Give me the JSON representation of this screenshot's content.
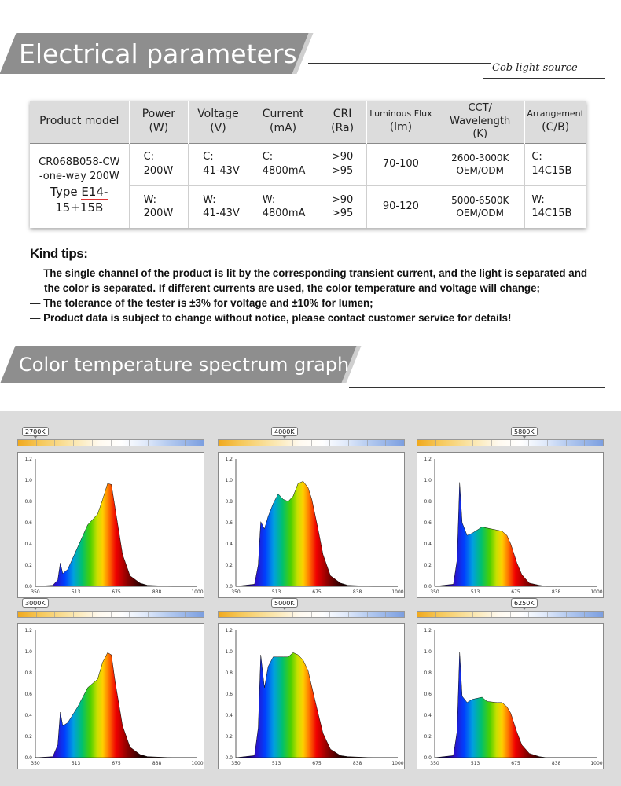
{
  "header1": {
    "title": "Electrical parameters",
    "subtitle": "Cob light source"
  },
  "table": {
    "headers": [
      {
        "line1": "Product model",
        "line2": ""
      },
      {
        "line1": "Power",
        "line2": "(W)"
      },
      {
        "line1": "Voltage",
        "line2": "(V)"
      },
      {
        "line1": "Current",
        "line2": "(mA)"
      },
      {
        "line1": "CRI",
        "line2": "(Ra)"
      },
      {
        "line1": "Luminous Flux",
        "line2": "(lm)"
      },
      {
        "line1": "CCT/ Wavelength",
        "line2": "(K)"
      },
      {
        "line1": "Arrangement",
        "line2": "(C/B)"
      }
    ],
    "model": {
      "line1": "CR068B058-CW",
      "line2": "-one-way 200W",
      "type_prefix": "Type ",
      "type_underlined": "E14-15+15B"
    },
    "rows": [
      {
        "power": [
          "C:",
          "200W"
        ],
        "voltage": [
          "C:",
          "41-43V"
        ],
        "current": [
          "C:",
          "4800mA"
        ],
        "cri": [
          ">90",
          ">95"
        ],
        "flux": "70-100",
        "cct": [
          "2600-3000K",
          "OEM/ODM"
        ],
        "arrangement": [
          "C:",
          "14C15B"
        ]
      },
      {
        "power": [
          "W:",
          "200W"
        ],
        "voltage": [
          "W:",
          "41-43V"
        ],
        "current": [
          "W:",
          "4800mA"
        ],
        "cri": [
          ">90",
          ">95"
        ],
        "flux": "90-120",
        "cct": [
          "5000-6500K",
          "OEM/ODM"
        ],
        "arrangement": [
          "W:",
          "14C15B"
        ]
      }
    ]
  },
  "tips": {
    "title": "Kind tips:",
    "dash": "—",
    "items": [
      "The single channel of the product is lit by the corresponding transient current, and the light is separated and",
      "the color is separated. If different currents are used, the color temperature and voltage will change;",
      "The tolerance of the tester is ±3% for voltage and ±10% for lumen;",
      "Product data is subject to change without notice, please contact customer service for details!"
    ]
  },
  "header2": {
    "title": "Color temperature spectrum graph"
  },
  "spectra": {
    "y_ticks": [
      "1.2",
      "1.0",
      "0.8",
      "0.6",
      "0.4",
      "0.2",
      "0.0"
    ],
    "x_ticks": [
      "350",
      "513",
      "675",
      "838",
      "1000"
    ],
    "panels": [
      {
        "cct": "2700K",
        "tag_pos": "left"
      },
      {
        "cct": "4000K",
        "tag_pos": "center"
      },
      {
        "cct": "5800K",
        "tag_pos": "right"
      },
      {
        "cct": "3000K",
        "tag_pos": "left"
      },
      {
        "cct": "5000K",
        "tag_pos": "center"
      },
      {
        "cct": "6250K",
        "tag_pos": "right"
      }
    ]
  },
  "chart_data": {
    "type": "area",
    "xlabel": "",
    "ylabel": "",
    "xlim": [
      350,
      1000
    ],
    "ylim": [
      0,
      1.2
    ],
    "series": [
      {
        "label": "2700K",
        "x": [
          350,
          420,
          440,
          450,
          460,
          480,
          520,
          560,
          600,
          620,
          640,
          655,
          670,
          700,
          730,
          770,
          800,
          900,
          1000
        ],
        "values": [
          0,
          0.01,
          0.06,
          0.22,
          0.12,
          0.16,
          0.37,
          0.58,
          0.68,
          0.82,
          0.97,
          0.96,
          0.74,
          0.3,
          0.1,
          0.03,
          0.01,
          0,
          0
        ]
      },
      {
        "label": "4000K",
        "x": [
          350,
          425,
          440,
          450,
          465,
          480,
          500,
          520,
          540,
          560,
          580,
          600,
          620,
          640,
          655,
          680,
          700,
          730,
          770,
          800,
          900,
          1000
        ],
        "values": [
          0,
          0.02,
          0.2,
          0.61,
          0.54,
          0.66,
          0.78,
          0.87,
          0.82,
          0.8,
          0.85,
          0.97,
          0.99,
          0.93,
          0.82,
          0.54,
          0.3,
          0.1,
          0.03,
          0.01,
          0,
          0
        ]
      },
      {
        "label": "5800K",
        "x": [
          350,
          425,
          440,
          450,
          460,
          480,
          500,
          540,
          560,
          600,
          620,
          640,
          655,
          680,
          700,
          730,
          770,
          800,
          900,
          1000
        ],
        "values": [
          0,
          0.02,
          0.25,
          0.98,
          0.6,
          0.48,
          0.5,
          0.56,
          0.55,
          0.53,
          0.52,
          0.48,
          0.4,
          0.22,
          0.11,
          0.03,
          0.01,
          0,
          0,
          0
        ]
      },
      {
        "label": "3000K",
        "x": [
          350,
          420,
          440,
          450,
          460,
          480,
          520,
          560,
          600,
          620,
          640,
          655,
          670,
          700,
          730,
          770,
          800,
          900,
          1000
        ],
        "values": [
          0,
          0.01,
          0.12,
          0.43,
          0.3,
          0.33,
          0.48,
          0.66,
          0.74,
          0.9,
          0.99,
          0.97,
          0.72,
          0.3,
          0.1,
          0.03,
          0.01,
          0,
          0
        ]
      },
      {
        "label": "5000K",
        "x": [
          350,
          425,
          440,
          450,
          465,
          480,
          500,
          520,
          540,
          560,
          580,
          600,
          620,
          640,
          660,
          680,
          700,
          730,
          770,
          800,
          900,
          1000
        ],
        "values": [
          0,
          0.02,
          0.28,
          0.97,
          0.66,
          0.86,
          0.95,
          0.95,
          0.95,
          0.95,
          0.99,
          0.97,
          0.92,
          0.82,
          0.62,
          0.42,
          0.23,
          0.08,
          0.02,
          0.01,
          0,
          0
        ]
      },
      {
        "label": "6250K",
        "x": [
          350,
          425,
          440,
          450,
          460,
          480,
          500,
          540,
          560,
          600,
          620,
          640,
          655,
          680,
          700,
          730,
          770,
          800,
          900,
          1000
        ],
        "values": [
          0,
          0.02,
          0.25,
          1.0,
          0.58,
          0.52,
          0.55,
          0.57,
          0.53,
          0.52,
          0.52,
          0.48,
          0.42,
          0.24,
          0.12,
          0.04,
          0.01,
          0,
          0,
          0
        ]
      }
    ]
  }
}
